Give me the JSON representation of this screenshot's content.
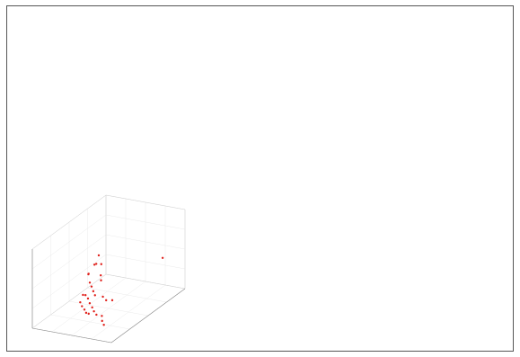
{
  "chart_data": {
    "type": "scatter",
    "title": "",
    "xlabel": "",
    "ylabel": "",
    "zlabel": "",
    "grid": true,
    "marker_color": "#e0201b",
    "axes_box_color": "#cfcfcf",
    "points": [
      {
        "x": 0.3,
        "y": 0.58,
        "z": 0.58,
        "label": ""
      },
      {
        "x": 0.36,
        "y": 0.55,
        "z": 0.5,
        "label": ""
      },
      {
        "x": 0.32,
        "y": 0.5,
        "z": 0.52,
        "label": ""
      },
      {
        "x": 0.25,
        "y": 0.6,
        "z": 0.45,
        "label": ""
      },
      {
        "x": 0.4,
        "y": 0.5,
        "z": 0.4,
        "label": ""
      },
      {
        "x": 0.45,
        "y": 0.45,
        "z": 0.38,
        "label": ""
      },
      {
        "x": 0.2,
        "y": 0.55,
        "z": 0.35,
        "label": ""
      },
      {
        "x": 0.15,
        "y": 0.6,
        "z": 0.3,
        "label": ""
      },
      {
        "x": 0.28,
        "y": 0.48,
        "z": 0.3,
        "label": ""
      },
      {
        "x": 0.33,
        "y": 0.45,
        "z": 0.28,
        "label": ""
      },
      {
        "x": 0.38,
        "y": 0.42,
        "z": 0.25,
        "label": ""
      },
      {
        "x": 0.42,
        "y": 0.4,
        "z": 0.22,
        "label": ""
      },
      {
        "x": 0.3,
        "y": 0.4,
        "z": 0.2,
        "label": ""
      },
      {
        "x": 0.35,
        "y": 0.38,
        "z": 0.18,
        "label": ""
      },
      {
        "x": 0.25,
        "y": 0.42,
        "z": 0.18,
        "label": ""
      },
      {
        "x": 0.4,
        "y": 0.35,
        "z": 0.15,
        "label": ""
      },
      {
        "x": 0.45,
        "y": 0.33,
        "z": 0.12,
        "label": ""
      },
      {
        "x": 0.5,
        "y": 0.3,
        "z": 0.1,
        "label": ""
      },
      {
        "x": 0.55,
        "y": 0.28,
        "z": 0.08,
        "label": ""
      },
      {
        "x": 0.6,
        "y": 0.3,
        "z": 0.06,
        "label": ""
      },
      {
        "x": 0.48,
        "y": 0.25,
        "z": 0.1,
        "label": ""
      },
      {
        "x": 0.38,
        "y": 0.3,
        "z": 0.1,
        "label": ""
      },
      {
        "x": 0.33,
        "y": 0.32,
        "z": 0.12,
        "label": ""
      },
      {
        "x": 0.28,
        "y": 0.35,
        "z": 0.14,
        "label": ""
      },
      {
        "x": 0.42,
        "y": 0.28,
        "z": 0.08,
        "label": ""
      },
      {
        "x": 0.52,
        "y": 0.4,
        "z": 0.22,
        "label": ""
      },
      {
        "x": 0.58,
        "y": 0.38,
        "z": 0.2,
        "label": ""
      },
      {
        "x": 0.62,
        "y": 0.42,
        "z": 0.18,
        "label": ""
      },
      {
        "x": 0.65,
        "y": 0.25,
        "z": 0.04,
        "label": ""
      },
      {
        "x": 0.7,
        "y": 0.22,
        "z": 0.02,
        "label": ""
      },
      {
        "x": 0.95,
        "y": 0.75,
        "z": 0.55,
        "label": ""
      }
    ],
    "ticks": {
      "x": [
        "",
        "",
        ""
      ],
      "y": [
        "",
        "",
        ""
      ],
      "z": [
        "",
        "",
        "",
        ""
      ]
    }
  }
}
